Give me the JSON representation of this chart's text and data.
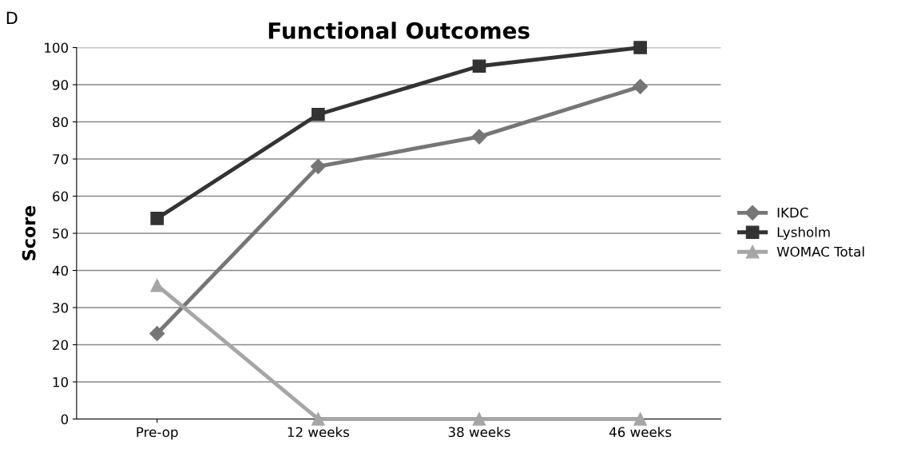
{
  "chart_data": {
    "type": "line",
    "title": "Functional Outcomes",
    "ylabel": "Score",
    "categories": [
      "Pre-op",
      "12 weeks",
      "38 weeks",
      "46 weeks"
    ],
    "series": [
      {
        "name": "IKDC",
        "color": "#767676",
        "marker": "diamond",
        "values": [
          23,
          68,
          76,
          89.5
        ]
      },
      {
        "name": "Lysholm",
        "color": "#333333",
        "marker": "square",
        "values": [
          54,
          82,
          95,
          100
        ]
      },
      {
        "name": "WOMAC Total",
        "color": "#a6a6a6",
        "marker": "triangle",
        "values": [
          36,
          0,
          0,
          0
        ]
      }
    ],
    "ylim": [
      0,
      100
    ],
    "yticks": [
      0,
      10,
      20,
      30,
      40,
      50,
      60,
      70,
      80,
      90,
      100
    ],
    "grid": "y",
    "legend": "right",
    "annotations": [
      "D"
    ]
  }
}
